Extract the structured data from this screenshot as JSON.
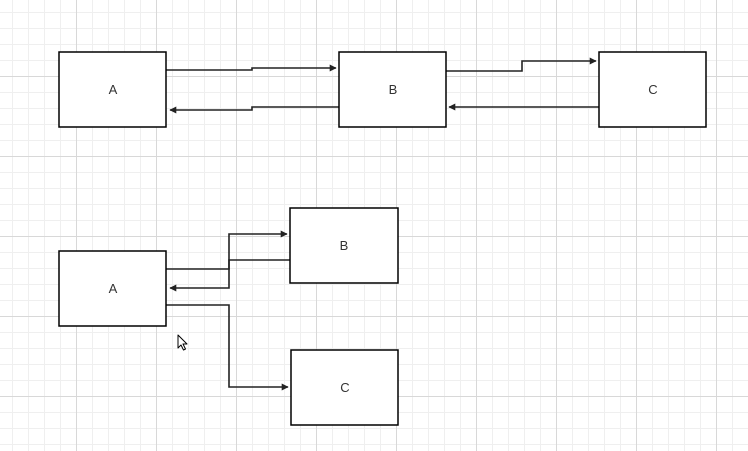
{
  "colors": {
    "canvas_background": "#ffffff",
    "grid_major": "#d8d8d8",
    "grid_minor": "#efefef",
    "node_border": "#000000",
    "edge": "#222222",
    "label_text": "#333333"
  },
  "diagram_top": {
    "nodes": {
      "a": {
        "label": "A"
      },
      "b": {
        "label": "B"
      },
      "c": {
        "label": "C"
      }
    },
    "edges": [
      {
        "from": "A",
        "to": "B"
      },
      {
        "from": "B",
        "to": "A"
      },
      {
        "from": "B",
        "to": "C"
      },
      {
        "from": "C",
        "to": "B"
      }
    ]
  },
  "diagram_bottom": {
    "nodes": {
      "a": {
        "label": "A"
      },
      "b": {
        "label": "B"
      },
      "c": {
        "label": "C"
      }
    },
    "edges": [
      {
        "from": "A",
        "to": "B"
      },
      {
        "from": "B",
        "to": "A"
      },
      {
        "from": "A",
        "to": "C"
      }
    ]
  },
  "cursor_icon": "mouse-pointer-icon"
}
